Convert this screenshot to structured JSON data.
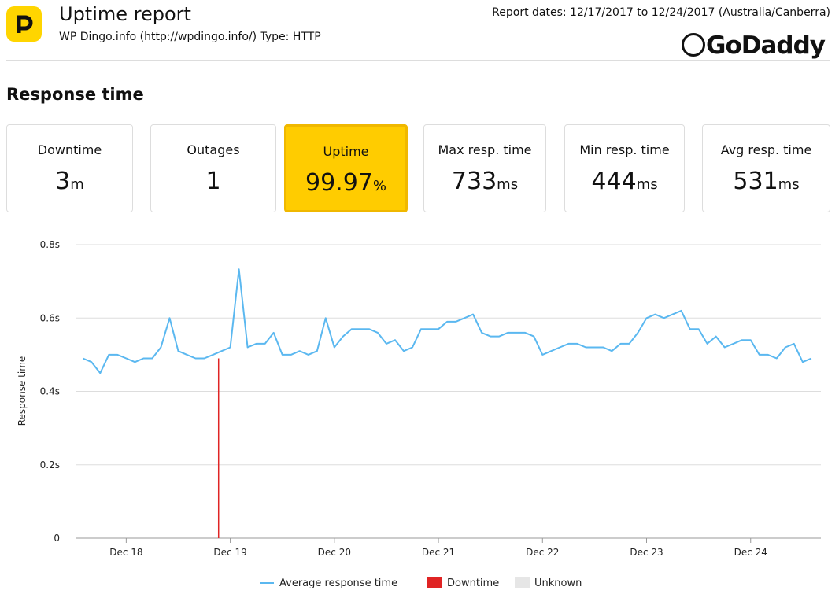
{
  "header": {
    "title": "Uptime report",
    "subtitle": "WP Dingo.info (http://wpdingo.info/) Type: HTTP",
    "report_dates": "Report dates: 12/17/2017 to 12/24/2017 (Australia/Canberra)",
    "brand": "GoDaddy"
  },
  "section_title": "Response time",
  "cards": [
    {
      "label": "Downtime",
      "value": "3",
      "unit": "m"
    },
    {
      "label": "Outages",
      "value": "1",
      "unit": null
    },
    {
      "label": "Uptime",
      "value": "99.97",
      "unit": "%"
    },
    {
      "label": "Max resp. time",
      "value": "733",
      "unit": "ms"
    },
    {
      "label": "Min resp. time",
      "value": "444",
      "unit": "ms"
    },
    {
      "label": "Avg resp. time",
      "value": "531",
      "unit": "ms"
    }
  ],
  "chart_data": {
    "type": "line",
    "ylabel": "Response time",
    "xlim": [
      12.5,
      184.2
    ],
    "xticks": [
      {
        "value": 24,
        "label": "Dec 18"
      },
      {
        "value": 48,
        "label": "Dec 19"
      },
      {
        "value": 72,
        "label": "Dec 20"
      },
      {
        "value": 96,
        "label": "Dec 21"
      },
      {
        "value": 120,
        "label": "Dec 22"
      },
      {
        "value": 144,
        "label": "Dec 23"
      },
      {
        "value": 168,
        "label": "Dec 24"
      }
    ],
    "ylim": [
      0,
      0.8
    ],
    "yticks": [
      0,
      {
        "value": 0.2,
        "label": "0.2s"
      },
      {
        "value": 0.4,
        "label": "0.4s"
      },
      {
        "value": 0.6,
        "label": "0.6s"
      },
      {
        "value": 0.8,
        "label": "0.8s"
      }
    ],
    "grid": true,
    "series": [
      {
        "name": "Average response time",
        "color": "#5bb8f0",
        "x": [
          14,
          16,
          18,
          20,
          22,
          24,
          26,
          28,
          30,
          32,
          34,
          36,
          38,
          40,
          42,
          44,
          46,
          48,
          50,
          52,
          54,
          56,
          58,
          60,
          62,
          64,
          66,
          68,
          70,
          72,
          74,
          76,
          78,
          80,
          82,
          84,
          86,
          88,
          90,
          92,
          94,
          96,
          98,
          100,
          102,
          104,
          106,
          108,
          110,
          112,
          114,
          116,
          118,
          120,
          122,
          124,
          126,
          128,
          130,
          132,
          134,
          136,
          138,
          140,
          142,
          144,
          146,
          148,
          150,
          152,
          154,
          156,
          158,
          160,
          162,
          164,
          166,
          168,
          170,
          172,
          174,
          176,
          178,
          180,
          182
        ],
        "values": [
          0.49,
          0.48,
          0.45,
          0.5,
          0.5,
          0.49,
          0.48,
          0.49,
          0.49,
          0.52,
          0.6,
          0.51,
          0.5,
          0.49,
          0.49,
          0.5,
          0.51,
          0.52,
          0.733,
          0.52,
          0.53,
          0.53,
          0.56,
          0.5,
          0.5,
          0.51,
          0.5,
          0.51,
          0.6,
          0.52,
          0.55,
          0.57,
          0.57,
          0.57,
          0.56,
          0.53,
          0.54,
          0.51,
          0.52,
          0.57,
          0.57,
          0.57,
          0.59,
          0.59,
          0.6,
          0.61,
          0.56,
          0.55,
          0.55,
          0.56,
          0.56,
          0.56,
          0.55,
          0.5,
          0.51,
          0.52,
          0.53,
          0.53,
          0.52,
          0.52,
          0.52,
          0.51,
          0.53,
          0.53,
          0.56,
          0.6,
          0.61,
          0.6,
          0.61,
          0.62,
          0.57,
          0.57,
          0.53,
          0.55,
          0.52,
          0.53,
          0.54,
          0.54,
          0.5,
          0.5,
          0.49,
          0.52,
          0.53,
          0.48,
          0.49
        ]
      },
      {
        "name": "Downtime",
        "color": "#e02424",
        "x": [
          45.3
        ]
      },
      {
        "name": "Unknown",
        "color": "#e6e6e6",
        "x": []
      }
    ]
  }
}
